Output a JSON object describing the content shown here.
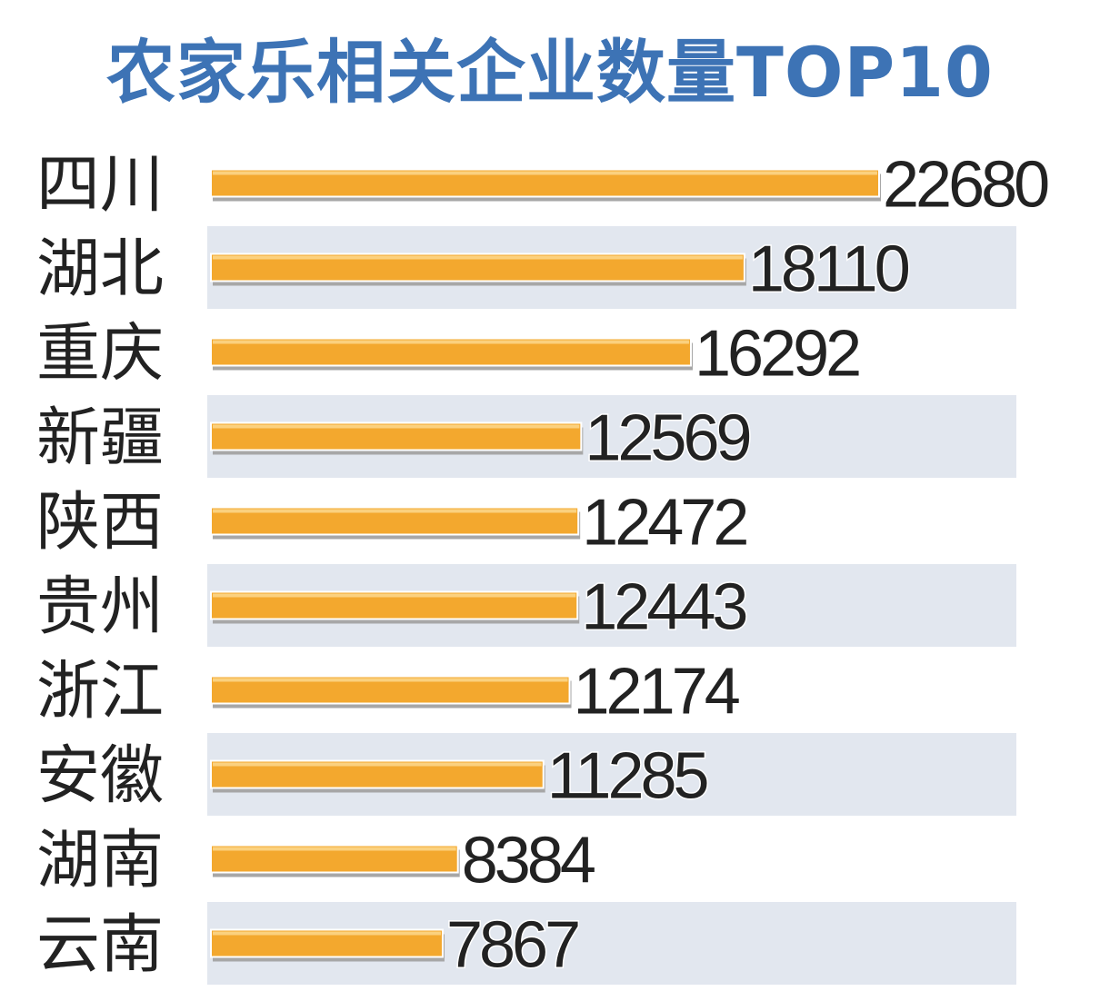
{
  "title": "农家乐相关企业数量TOP10",
  "colors": {
    "title": "#3d73b5",
    "bar": "#f3a82e",
    "bar_highlight": "#fbd17e",
    "bar_shadow": "#a7a7a7",
    "stripe": "#e2e7ef",
    "label": "#222222"
  },
  "chart_data": {
    "type": "bar",
    "orientation": "horizontal",
    "title": "农家乐相关企业数量TOP10",
    "categories": [
      "四川",
      "湖北",
      "重庆",
      "新疆",
      "陕西",
      "贵州",
      "浙江",
      "安徽",
      "湖南",
      "云南"
    ],
    "values": [
      22680,
      18110,
      16292,
      12569,
      12472,
      12443,
      12174,
      11285,
      8384,
      7867
    ],
    "value_labels": [
      "22680",
      "18110",
      "16292",
      "12569",
      "12472",
      "12443",
      "12174",
      "11285",
      "8384",
      "7867"
    ],
    "xlim": [
      0,
      22680
    ],
    "grid": false,
    "legend": "none"
  }
}
